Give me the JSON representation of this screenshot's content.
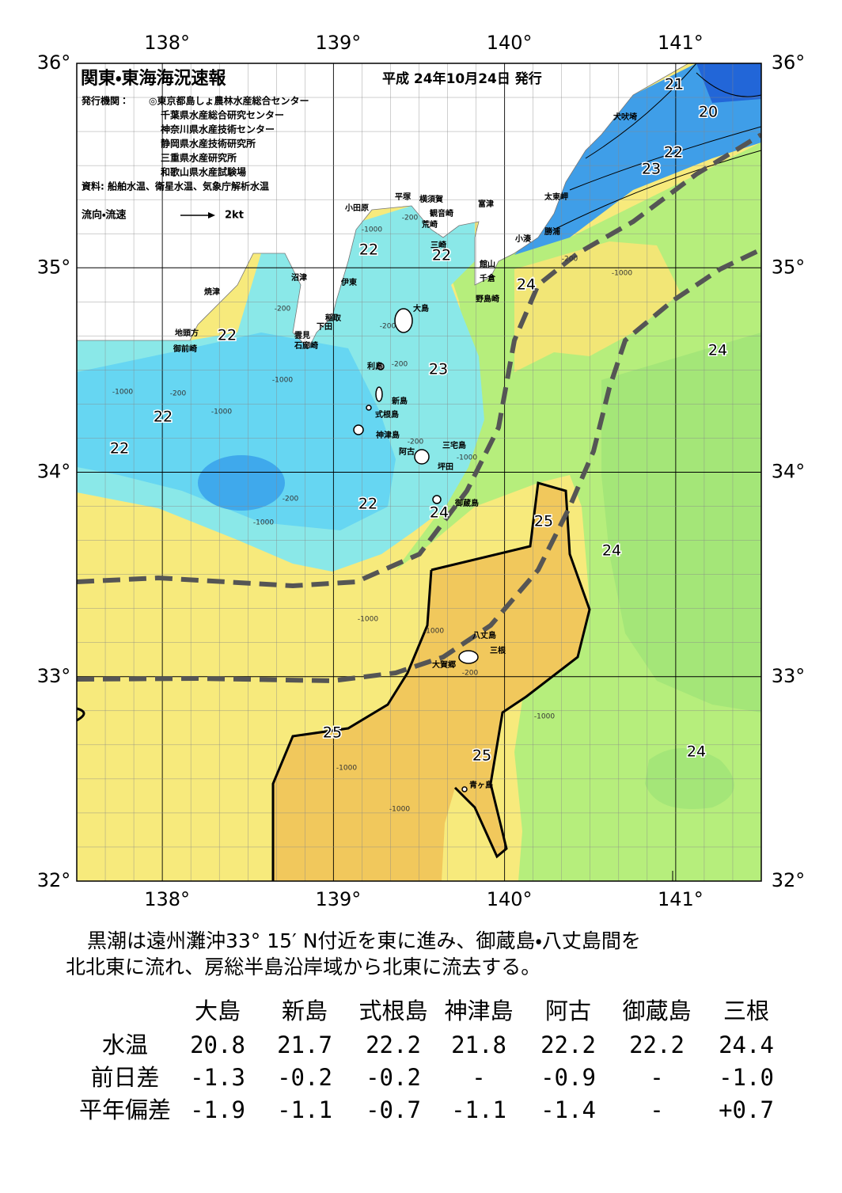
{
  "header": {
    "title": "関東・東海海況速報",
    "date": "平成 24年10月24日 発行",
    "issuer_label": "発行機関：",
    "issuers": [
      "◎東京都島しょ農林水産総合センター",
      "千葉県水産総合研究センター",
      "神奈川県水産技術センター",
      "静岡県水産技術研究所",
      "三重県水産研究所",
      "和歌山県水産試験場"
    ],
    "source": "資料: 船舶水温、衛星水温、気象庁解析水温",
    "legend_label": "流向・流速",
    "legend_speed": "2kt"
  },
  "axes": {
    "longitude": [
      "138°",
      "139°",
      "140°",
      "141°"
    ],
    "latitude": [
      "36°",
      "35°",
      "34°",
      "33°",
      "32°"
    ]
  },
  "places": [
    "犬吠埼",
    "富津",
    "平塚",
    "横須賀",
    "観音崎",
    "小田原",
    "荒崎",
    "太東岬",
    "勝浦",
    "小湊",
    "三崎",
    "館山",
    "沼津",
    "伊東",
    "千倉",
    "焼津",
    "野島崎",
    "大島",
    "稲取",
    "下田",
    "雲見",
    "石廊崎",
    "地頭方",
    "御前崎",
    "利島",
    "新島",
    "式根島",
    "神津島",
    "三宅島",
    "阿古",
    "坪田",
    "御蔵島",
    "八丈島",
    "三根",
    "大賀郷",
    "青ヶ島"
  ],
  "temperature_labels": [
    "21",
    "20",
    "22",
    "23",
    "22",
    "22",
    "24",
    "22",
    "23",
    "24",
    "22",
    "22",
    "22",
    "24",
    "25",
    "24",
    "25",
    "25",
    "24"
  ],
  "depth_labels": [
    "-200",
    "-1000",
    "-200",
    "-1000",
    "-200",
    "-200",
    "-200",
    "-1000",
    "-1000",
    "-200",
    "-1000",
    "-200",
    "-1000",
    "-200",
    "-1000",
    "-1000",
    "-1000",
    "-200",
    "-1000",
    "-1000",
    "-1000"
  ],
  "summary": [
    "黒潮は遠州灘沖33° 15′ N付近を東に進み、御蔵島・八丈島間を",
    "北北東に流れ、房総半島沿岸域から北東に流去する。"
  ],
  "table": {
    "columns": [
      "大島",
      "新島",
      "式根島",
      "神津島",
      "阿古",
      "御蔵島",
      "三根"
    ],
    "rows": [
      [
        "水温",
        "20.8",
        "21.7",
        "22.2",
        "21.8",
        "22.2",
        "22.2",
        "24.4"
      ],
      [
        "前日差",
        "-1.3",
        "-0.2",
        "-0.2",
        "-",
        "-0.9",
        "-",
        "-1.0"
      ],
      [
        "平年偏差",
        "-1.9",
        "-1.1",
        "-0.7",
        "-1.1",
        "-1.4",
        "-",
        "+0.7"
      ]
    ]
  }
}
